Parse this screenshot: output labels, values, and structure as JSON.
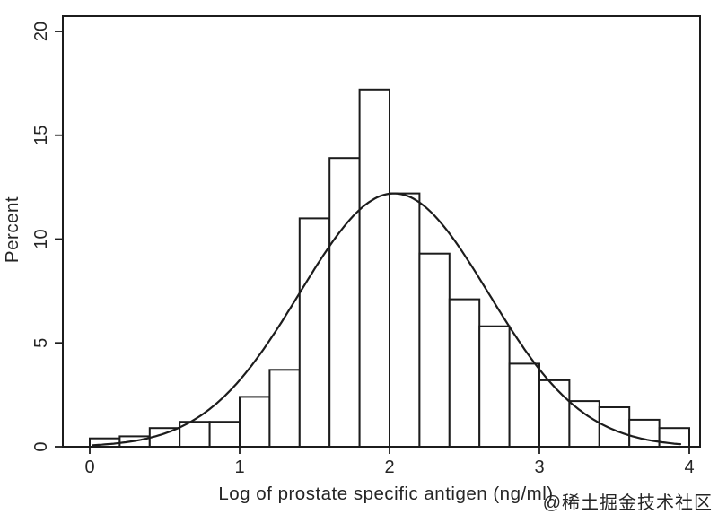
{
  "page": {
    "background": "#ffffff",
    "ink_color": "#1c1c1c",
    "text_color": "#242424"
  },
  "watermark": {
    "text": "@稀土掘金技术社区",
    "color": "#b0b0b0"
  },
  "chart_data": {
    "type": "bar",
    "subtype": "histogram-with-normal-curve",
    "title": "",
    "xlabel": "Log of prostate specific antigen (ng/ml)",
    "ylabel": "Percent",
    "xlim": [
      0,
      4
    ],
    "ylim": [
      0,
      20
    ],
    "x_ticks": [
      0,
      1,
      2,
      3,
      4
    ],
    "y_ticks": [
      0,
      5,
      10,
      15,
      20
    ],
    "grid": false,
    "legend": null,
    "bar_fill": "#ffffff",
    "line_color": "#1c1c1c",
    "bin_width": 0.2,
    "bin_edges": [
      0,
      0.2,
      0.4,
      0.6,
      0.8,
      1.0,
      1.2,
      1.4,
      1.6,
      1.8,
      2.0,
      2.2,
      2.4,
      2.6,
      2.8,
      3.0,
      3.2,
      3.4,
      3.6,
      3.8,
      4.0
    ],
    "values": [
      0.4,
      0.5,
      0.9,
      1.2,
      1.2,
      2.4,
      3.7,
      11.0,
      13.9,
      17.2,
      12.2,
      9.3,
      7.1,
      5.8,
      4.0,
      3.2,
      2.2,
      1.9,
      1.3,
      0.9
    ],
    "overlay_curve": {
      "shape": "normal",
      "mean": 2.03,
      "sd": 0.63,
      "peak_percent": 12.2,
      "x_start": 0.02,
      "x_end": 3.94
    }
  }
}
